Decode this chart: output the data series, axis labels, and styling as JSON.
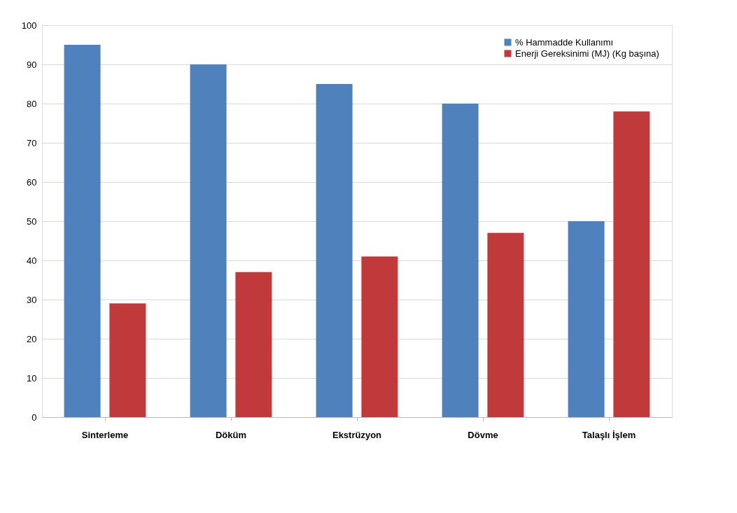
{
  "chart_data": {
    "type": "bar",
    "categories": [
      "Sinterleme",
      "Döküm",
      "Ekstrüzyon",
      "Dövme",
      "Talaşlı İşlem"
    ],
    "series": [
      {
        "name": "% Hammadde Kullanımı",
        "color": "#4f81bd",
        "values": [
          95,
          90,
          85,
          80,
          50
        ]
      },
      {
        "name": "Enerji Gereksinimi (MJ) (Kg başına)",
        "color": "#c0393b",
        "values": [
          29,
          37,
          41,
          47,
          78
        ]
      }
    ],
    "ylim": [
      0,
      100
    ],
    "yticks": [
      0,
      10,
      20,
      30,
      40,
      50,
      60,
      70,
      80,
      90,
      100
    ],
    "grid": "y",
    "legend": "top right"
  }
}
